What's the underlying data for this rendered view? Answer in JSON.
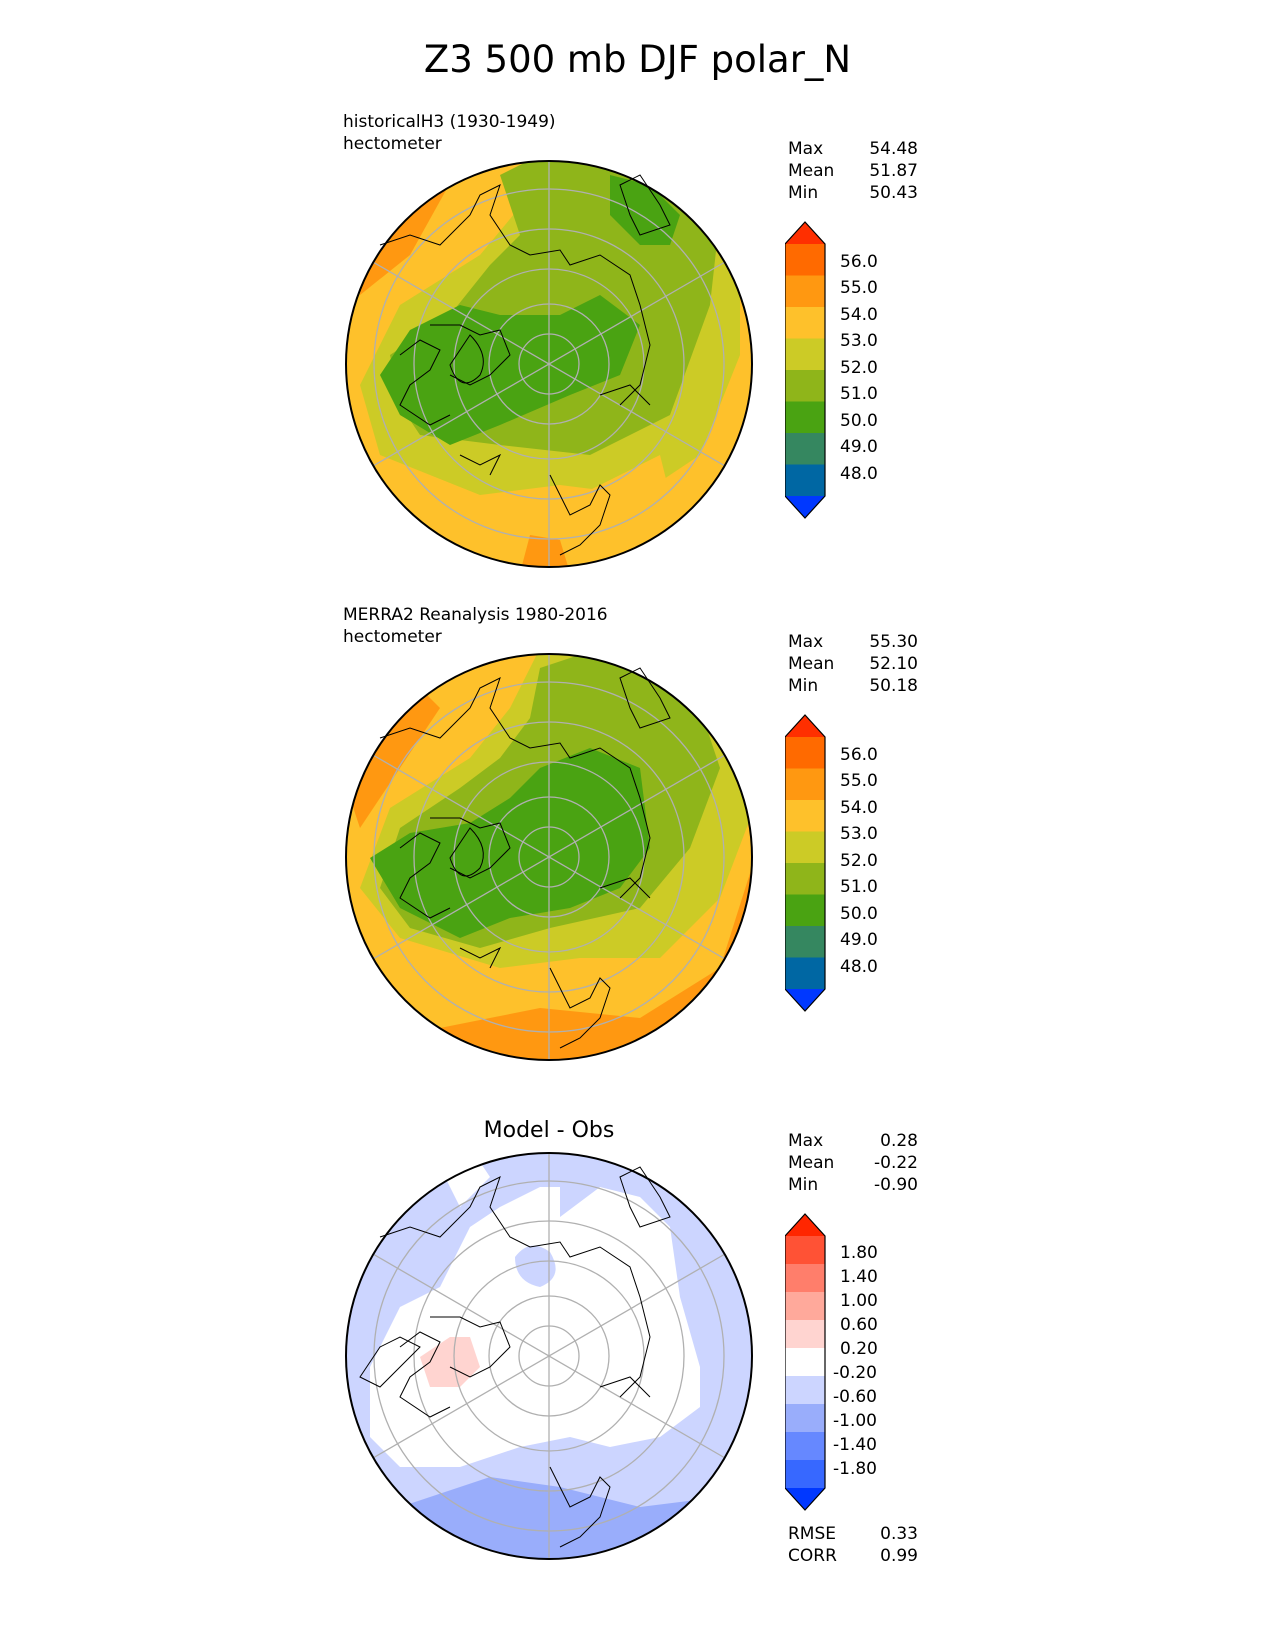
{
  "figure": {
    "title": "Z3 500 mb DJF polar_N"
  },
  "colors": {
    "abs": [
      "#0038ff",
      "#0067a3",
      "#358760",
      "#4aa312",
      "#8fb51a",
      "#cccb26",
      "#fec12b",
      "#ff9811",
      "#ff6a00",
      "#ff2f00"
    ],
    "diff": [
      "#0038ff",
      "#3768ff",
      "#6688ff",
      "#99adfb",
      "#ccd5ff",
      "#ffffff",
      "#ffd4d0",
      "#ffa99b",
      "#ff7e6b",
      "#ff5235",
      "#ff2600"
    ]
  },
  "panels": [
    {
      "line1": "historicalH3 (1930-1949)",
      "line2": "hectometer",
      "stats": {
        "max_label": "Max",
        "max": "54.48",
        "mean_label": "Mean",
        "mean": "51.87",
        "min_label": "Min",
        "min": "50.43"
      },
      "ticks": [
        "56.0",
        "55.0",
        "54.0",
        "53.0",
        "52.0",
        "51.0",
        "50.0",
        "49.0",
        "48.0"
      ]
    },
    {
      "line1": "MERRA2 Reanalysis 1980-2016",
      "line2": "hectometer",
      "stats": {
        "max_label": "Max",
        "max": "55.30",
        "mean_label": "Mean",
        "mean": "52.10",
        "min_label": "Min",
        "min": "50.18"
      },
      "ticks": [
        "56.0",
        "55.0",
        "54.0",
        "53.0",
        "52.0",
        "51.0",
        "50.0",
        "49.0",
        "48.0"
      ]
    },
    {
      "title": "Model - Obs",
      "stats": {
        "max_label": "Max",
        "max": "0.28",
        "mean_label": "Mean",
        "mean": "-0.22",
        "min_label": "Min",
        "min": "-0.90"
      },
      "ticks": [
        "1.80",
        "1.40",
        "1.00",
        "0.60",
        "0.20",
        "-0.20",
        "-0.60",
        "-1.00",
        "-1.40",
        "-1.80"
      ],
      "rmse_label": "RMSE",
      "rmse": "0.33",
      "corr_label": "CORR",
      "corr": "0.99"
    }
  ]
}
